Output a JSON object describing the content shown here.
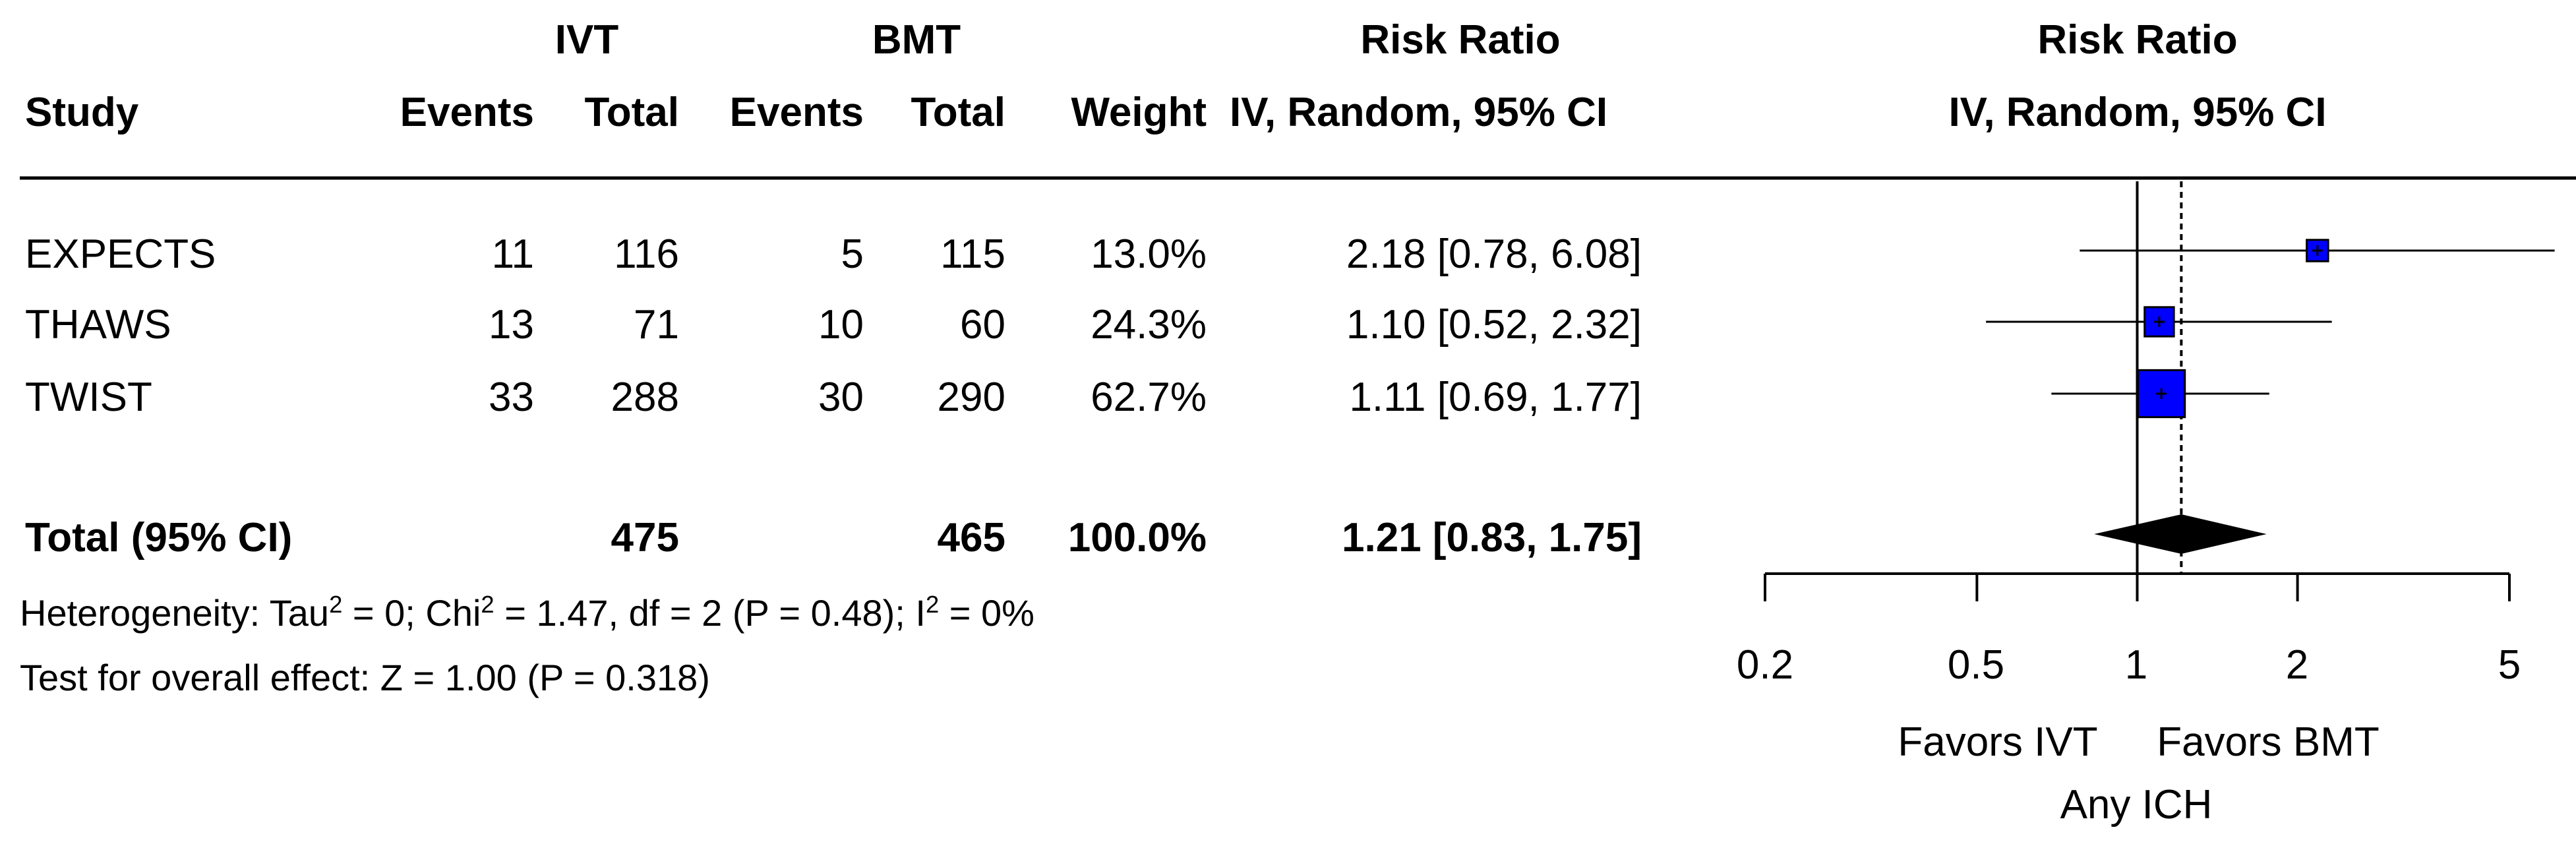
{
  "headers": {
    "ivt": "IVT",
    "bmt": "BMT",
    "risk_ratio": "Risk Ratio",
    "study": "Study",
    "events": "Events",
    "total": "Total",
    "weight": "Weight",
    "method": "IV, Random, 95% CI",
    "plot_title": "Risk Ratio",
    "plot_method": "IV, Random, 95% CI"
  },
  "rows": [
    {
      "study": "EXPECTS",
      "ivt_events": "11",
      "ivt_total": "116",
      "bmt_events": "5",
      "bmt_total": "115",
      "weight": "13.0%",
      "ci": "2.18 [0.78, 6.08]"
    },
    {
      "study": "THAWS",
      "ivt_events": "13",
      "ivt_total": "71",
      "bmt_events": "10",
      "bmt_total": "60",
      "weight": "24.3%",
      "ci": "1.10 [0.52, 2.32]"
    },
    {
      "study": "TWIST",
      "ivt_events": "33",
      "ivt_total": "288",
      "bmt_events": "30",
      "bmt_total": "290",
      "weight": "62.7%",
      "ci": "1.11 [0.69, 1.77]"
    }
  ],
  "total_row": {
    "label": "Total (95% CI)",
    "ivt_total": "475",
    "bmt_total": "465",
    "weight": "100.0%",
    "ci": "1.21 [0.83, 1.75]"
  },
  "heterogeneity": {
    "prefix": "Heterogeneity: Tau",
    "tau_exp": "2",
    "tau_val": " = 0; Chi",
    "chi_exp": "2",
    "chi_val": " = 1.47, df = 2 (P = 0.48); I",
    "i_exp": "2",
    "i_val": " = 0%"
  },
  "overall_effect": "Test for overall effect: Z = 1.00 (P = 0.318)",
  "chart_data": {
    "type": "scatter",
    "subtype": "forest",
    "scale": "log",
    "xlim": [
      0.2,
      5
    ],
    "reference_line": 1,
    "pooled_line": 1.21,
    "tick_labels": [
      "0.2",
      "0.5",
      "1",
      "2",
      "5"
    ],
    "ticks": [
      0.2,
      0.5,
      1,
      2,
      5
    ],
    "studies": [
      {
        "name": "EXPECTS",
        "rr": 2.18,
        "lower": 0.78,
        "upper": 6.08,
        "weight": 13.0
      },
      {
        "name": "THAWS",
        "rr": 1.1,
        "lower": 0.52,
        "upper": 2.32,
        "weight": 24.3
      },
      {
        "name": "TWIST",
        "rr": 1.11,
        "lower": 0.69,
        "upper": 1.77,
        "weight": 62.7
      }
    ],
    "pooled": {
      "rr": 1.21,
      "lower": 0.83,
      "upper": 1.75
    },
    "favors_left": "Favors IVT",
    "favors_right": "Favors BMT",
    "xlabel": "Any ICH",
    "colors": {
      "box": "#0000ff",
      "diamond": "#000000"
    }
  }
}
